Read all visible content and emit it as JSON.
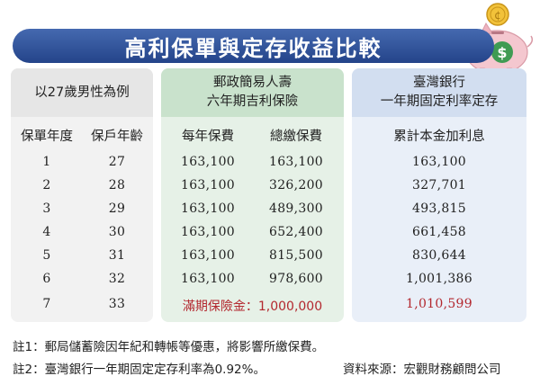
{
  "title": "高利保單與定存收益比較",
  "panels": {
    "left": {
      "header": "以27歲男性為例"
    },
    "mid": {
      "header_line1": "郵政簡易人壽",
      "header_line2": "六年期吉利保險"
    },
    "right": {
      "header_line1": "臺灣銀行",
      "header_line2": "一年期固定利率定存"
    }
  },
  "columns": {
    "policy_year": "保單年度",
    "age": "保戶年齡",
    "annual_premium": "每年保費",
    "total_premium": "總繳保費",
    "accumulated": "累計本金加利息"
  },
  "rows": [
    {
      "year": "1",
      "age": "27",
      "annual": "163,100",
      "total": "163,100",
      "bank": "163,100"
    },
    {
      "year": "2",
      "age": "28",
      "annual": "163,100",
      "total": "326,200",
      "bank": "327,701"
    },
    {
      "year": "3",
      "age": "29",
      "annual": "163,100",
      "total": "489,300",
      "bank": "493,815"
    },
    {
      "year": "4",
      "age": "30",
      "annual": "163,100",
      "total": "652,400",
      "bank": "661,458"
    },
    {
      "year": "5",
      "age": "31",
      "annual": "163,100",
      "total": "815,500",
      "bank": "830,644"
    },
    {
      "year": "6",
      "age": "32",
      "annual": "163,100",
      "total": "978,600",
      "bank": "1,001,386"
    }
  ],
  "final_row": {
    "year": "7",
    "age": "33",
    "maturity": "滿期保險金：1,000,000",
    "bank": "1,010,599"
  },
  "notes": {
    "note1": "註1：郵局儲蓄險因年紀和轉帳等優惠，將影響所繳保費。",
    "note2": "註2：臺灣銀行一年期固定定存利率為0.92%。",
    "source": "資料來源：宏觀財務顧問公司"
  },
  "colors": {
    "title_bar": "#2d4f98",
    "highlight_red": "#b3282f",
    "panel_left": "#f2f2f2",
    "panel_mid": "#e6f1e7",
    "panel_right": "#e9eff8"
  },
  "icons": {
    "piggy": "piggy-bank-icon",
    "coin": "coin-icon",
    "dollar": "dollar-sign-icon"
  }
}
